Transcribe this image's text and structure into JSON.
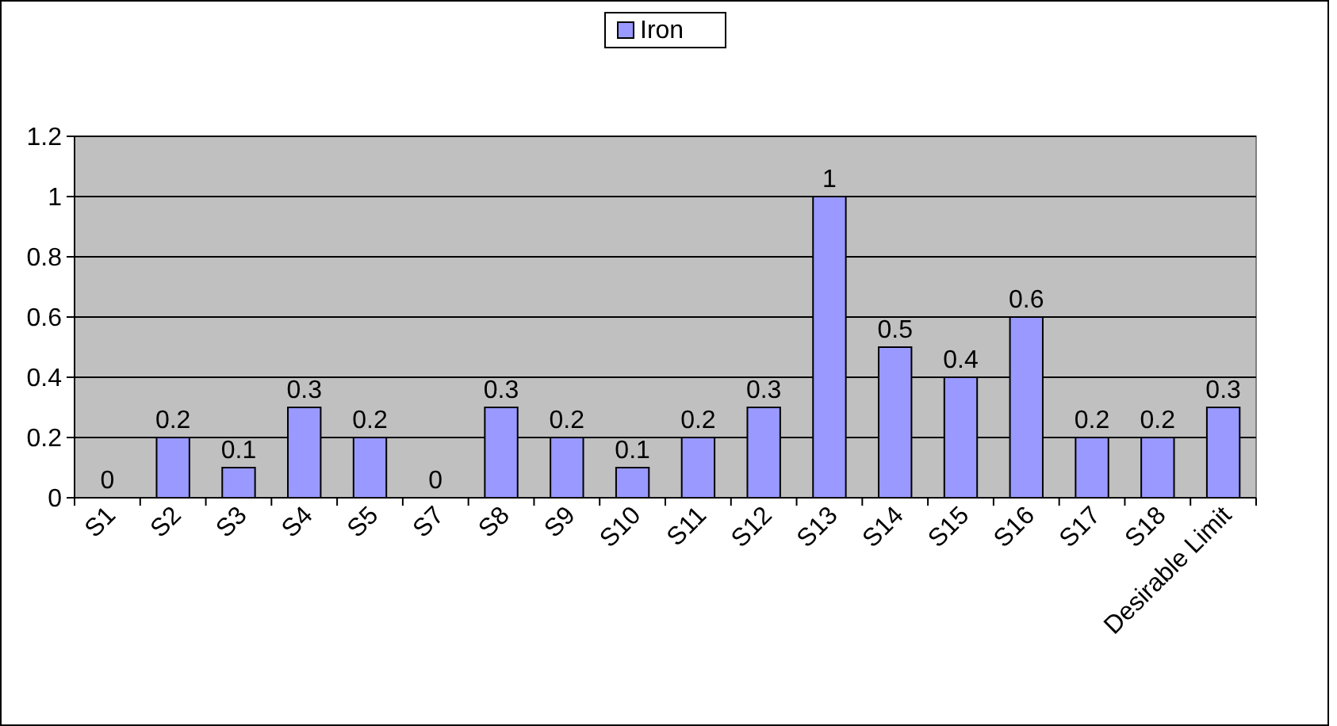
{
  "chart_data": {
    "type": "bar",
    "categories": [
      "S1",
      "S2",
      "S3",
      "S4",
      "S5",
      "S7",
      "S8",
      "S9",
      "S10",
      "S11",
      "S12",
      "S13",
      "S14",
      "S15",
      "S16",
      "S17",
      "S18",
      "Desirable Limit"
    ],
    "series": [
      {
        "name": "Iron",
        "color": "#9999ff",
        "values": [
          0,
          0.2,
          0.1,
          0.3,
          0.2,
          0,
          0.3,
          0.2,
          0.1,
          0.2,
          0.3,
          1,
          0.5,
          0.4,
          0.6,
          0.2,
          0.2,
          0.3
        ]
      }
    ],
    "ylim": [
      0,
      1.2
    ],
    "yticks": [
      0,
      0.2,
      0.4,
      0.6,
      0.8,
      1,
      1.2
    ],
    "grid": "y",
    "data_labels": true,
    "legend": "top"
  }
}
